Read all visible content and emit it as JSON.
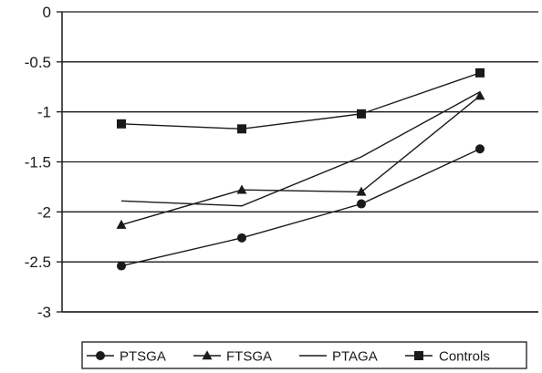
{
  "chart_data": {
    "type": "line",
    "title": "",
    "xlabel": "",
    "ylabel": "",
    "ylim": [
      -3,
      0
    ],
    "yticks": [
      0,
      -0.5,
      -1,
      -1.5,
      -2,
      -2.5,
      -3
    ],
    "ytick_labels": [
      "0",
      "-0.5",
      "-1",
      "-1.5",
      "-2",
      "-2.5",
      "-3"
    ],
    "x": [
      1,
      2,
      3,
      4
    ],
    "grid": true,
    "legend_position": "bottom",
    "series": [
      {
        "name": "PTSGA",
        "marker": "circle",
        "values": [
          -2.54,
          -2.26,
          -1.92,
          -1.37
        ]
      },
      {
        "name": "FTSGA",
        "marker": "triangle",
        "values": [
          -2.13,
          -1.78,
          -1.8,
          -0.84
        ]
      },
      {
        "name": "PTAGA",
        "marker": "none",
        "values": [
          -1.89,
          -1.94,
          -1.45,
          -0.8
        ]
      },
      {
        "name": "Controls",
        "marker": "square",
        "values": [
          -1.12,
          -1.17,
          -1.02,
          -0.61
        ]
      }
    ],
    "colors": {
      "line": "#1a1a1a",
      "grid": "#1a1a1a",
      "axis": "#1a1a1a"
    }
  }
}
